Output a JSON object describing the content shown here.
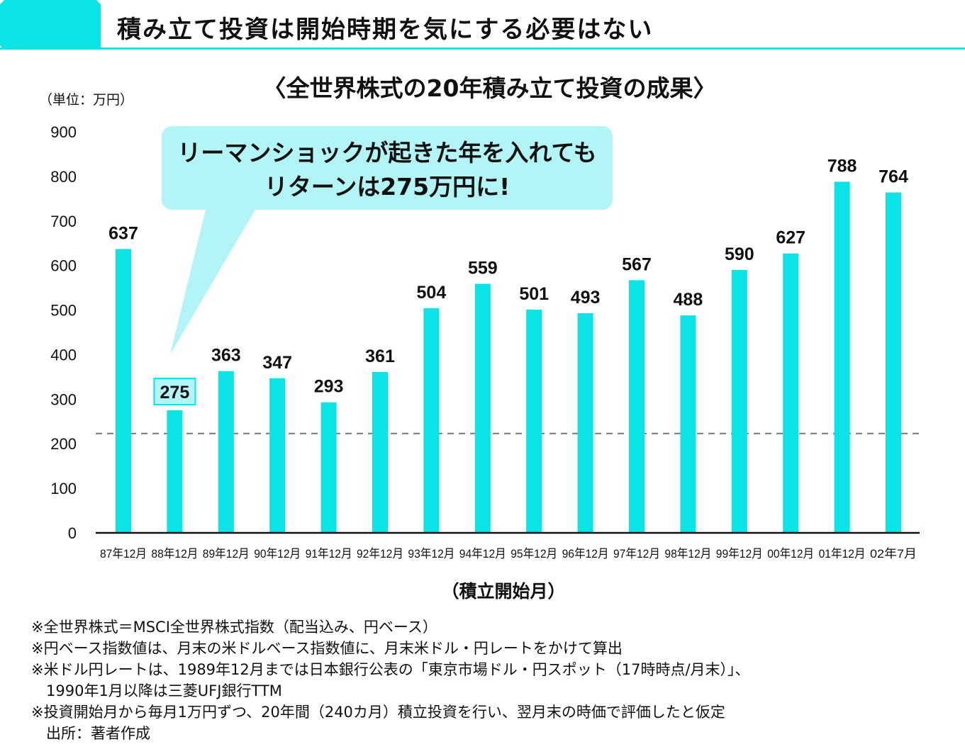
{
  "header": {
    "title": "積み立て投資は開始時期を気にする必要はない"
  },
  "chart_data": {
    "type": "bar",
    "title": "〈全世界株式の20年積み立て投資の成果〉",
    "unit_label": "（単位：万円）",
    "xlabel": "（積立開始月）",
    "ylabel": "",
    "ylim": [
      0,
      900
    ],
    "yticks": [
      0,
      100,
      200,
      300,
      400,
      500,
      600,
      700,
      800,
      900
    ],
    "categories": [
      "87年12月",
      "88年12月",
      "89年12月",
      "90年12月",
      "91年12月",
      "92年12月",
      "93年12月",
      "94年12月",
      "95年12月",
      "96年12月",
      "97年12月",
      "98年12月",
      "99年12月",
      "00年12月",
      "01年12月",
      "02年7月"
    ],
    "values": [
      637,
      275,
      363,
      347,
      293,
      361,
      504,
      559,
      501,
      493,
      567,
      488,
      590,
      627,
      788,
      764
    ],
    "highlight_index": 1,
    "reference_line": 223,
    "grid": false,
    "bar_color": "#0ae4e6",
    "annotation": [
      "リーマンショックが起きた年を入れても",
      "リターンは275万円に!"
    ]
  },
  "notes": [
    "※全世界株式＝MSCI全世界株式指数（配当込み、円ベース）",
    "※円ベース指数値は、月末の米ドルベース指数値に、月末米ドル・円レートをかけて算出",
    "※米ドル円レートは、1989年12月までは日本銀行公表の「東京市場ドル・円スポット（17時時点/月末）」、",
    "　1990年1月以降は三菱UFJ銀行TTM",
    "※投資開始月から毎月1万円ずつ、20年間（240カ月）積立投資を行い、翌月末の時価で評価したと仮定",
    "　出所：著者作成"
  ]
}
